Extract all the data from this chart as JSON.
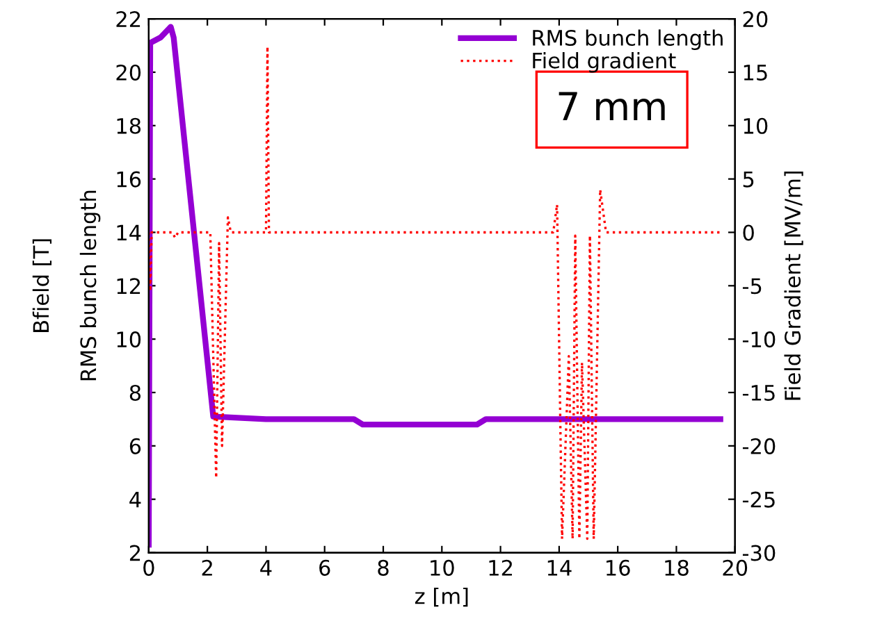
{
  "chart_data": {
    "type": "line",
    "xlabel": "z [m]",
    "ylabel": "Bfield [T]",
    "y2label": "Field Gradient [MV/m]",
    "annotations": [
      "RMS bunch length",
      "7 mm"
    ],
    "xlim": [
      0,
      20
    ],
    "xticks": [
      0,
      2,
      4,
      6,
      8,
      10,
      12,
      14,
      16,
      18,
      20
    ],
    "ylim": [
      2,
      22
    ],
    "yticks": [
      2,
      4,
      6,
      8,
      10,
      12,
      14,
      16,
      18,
      20,
      22
    ],
    "y2lim": [
      -30,
      20
    ],
    "y2ticks": [
      -30,
      -25,
      -20,
      -15,
      -10,
      -5,
      0,
      5,
      10,
      15,
      20
    ],
    "grid": false,
    "legend": "top right",
    "series": [
      {
        "name": "RMS bunch length",
        "color": "#9400d3",
        "line_style": "solid",
        "x": [
          0,
          0.05,
          0.4,
          0.75,
          0.85,
          2.2,
          4,
          7,
          7.3,
          11.2,
          11.5,
          19.5
        ],
        "values": [
          2.3,
          21.1,
          21.3,
          21.7,
          21.3,
          7.1,
          7.0,
          7.0,
          6.8,
          6.8,
          7.0,
          7.0
        ]
      },
      {
        "name": "Field gradient",
        "color": "#ff0000",
        "line_style": "dotted",
        "axis": "y2",
        "x": [
          0,
          0.05,
          0.1,
          0.8,
          0.9,
          1.0,
          2.1,
          2.3,
          2.4,
          2.5,
          2.7,
          2.8,
          3.0,
          4.0,
          4.05,
          4.1,
          13.8,
          13.93,
          14.1,
          14.33,
          14.46,
          14.55,
          14.69,
          14.78,
          14.96,
          15.05,
          15.18,
          15.4,
          15.6,
          19.5
        ],
        "values": [
          0,
          -5.5,
          0,
          0,
          -0.5,
          0,
          0,
          -23,
          -1,
          -20,
          1.4,
          0,
          0,
          0,
          17.4,
          0,
          0,
          2.6,
          -28.7,
          -11.6,
          -28.7,
          -0.3,
          -28.7,
          -12.2,
          -28.7,
          -0.3,
          -28.7,
          4,
          0,
          0
        ]
      }
    ]
  }
}
